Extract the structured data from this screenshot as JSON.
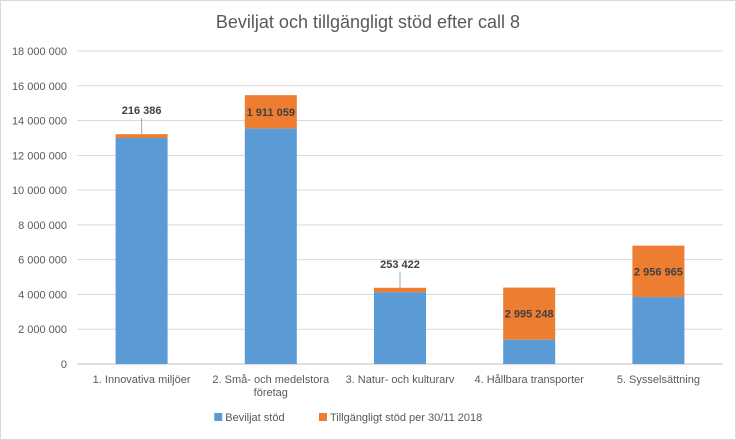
{
  "chart_data": {
    "type": "bar",
    "stacked": true,
    "title": "Beviljat och tillgängligt stöd efter call 8",
    "xlabel": "",
    "ylabel": "",
    "ylim": [
      0,
      18000000
    ],
    "y_ticks": [
      0,
      2000000,
      4000000,
      6000000,
      8000000,
      10000000,
      12000000,
      14000000,
      16000000,
      18000000
    ],
    "y_tick_labels": [
      "0",
      "2 000 000",
      "4 000 000",
      "6 000 000",
      "8 000 000",
      "10 000 000",
      "12 000 000",
      "14 000 000",
      "16 000 000",
      "18 000 000"
    ],
    "grid": true,
    "legend_position": "bottom",
    "categories": [
      [
        "1. Innovativa miljöer"
      ],
      [
        "2. Små- och medelstora",
        "företag"
      ],
      [
        "3. Natur- och kulturarv"
      ],
      [
        "4. Hållbara transporter"
      ],
      [
        "5. Sysselsättning"
      ]
    ],
    "series": [
      {
        "name": "Beviljat stöd",
        "color": "#5b9bd5",
        "values": [
          13000000,
          13550000,
          4130000,
          1400000,
          3850000
        ]
      },
      {
        "name": "Tillgängligt stöd per 30/11 2018",
        "color": "#ed7d31",
        "values": [
          216386,
          1911059,
          253422,
          2995248,
          2956965
        ],
        "labels": [
          "216 386",
          "1 911 059",
          "253 422",
          "2 995 248",
          "2 956 965"
        ]
      }
    ]
  }
}
